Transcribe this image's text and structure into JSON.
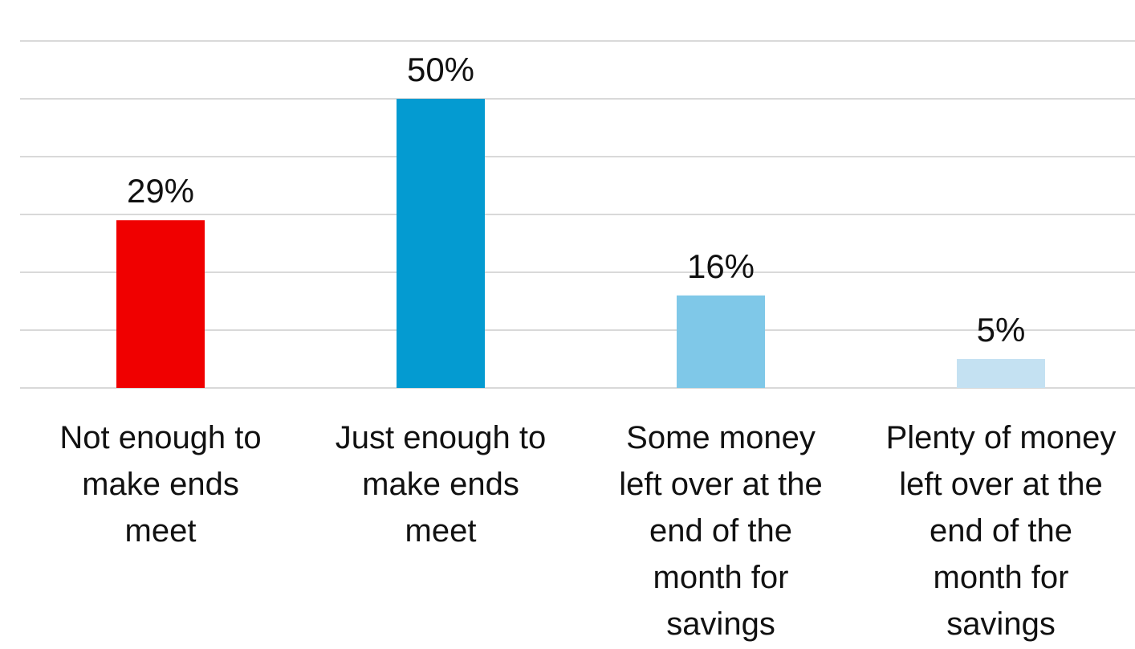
{
  "chart_data": {
    "type": "bar",
    "categories": [
      "Not enough to make ends meet",
      "Just enough to make ends meet",
      "Some money left over at the end of the month for savings",
      "Plenty of money left over at the end of the month for savings"
    ],
    "category_lines": [
      [
        "Not enough to",
        "make ends",
        "meet"
      ],
      [
        "Just enough to",
        "make ends",
        "meet"
      ],
      [
        "Some money",
        "left over at the",
        "end of the",
        "month for",
        "savings"
      ],
      [
        "Plenty of money",
        "left over at the",
        "end of the",
        "month for",
        "savings"
      ]
    ],
    "values": [
      29,
      50,
      16,
      5
    ],
    "data_labels": [
      "29%",
      "50%",
      "16%",
      "5%"
    ],
    "colors": [
      "#f00000",
      "#049bd1",
      "#7fc8e8",
      "#c4e1f2"
    ],
    "ylim": [
      0,
      60
    ],
    "grid": true,
    "title": "",
    "xlabel": "",
    "ylabel": ""
  }
}
